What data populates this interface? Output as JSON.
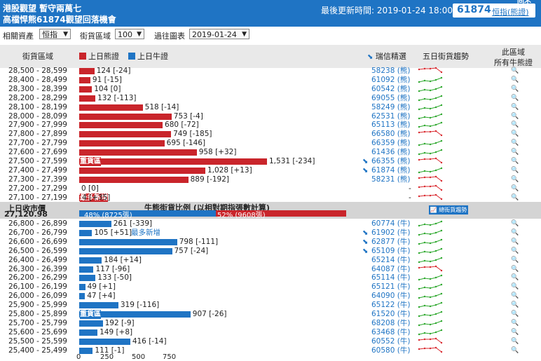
{
  "header": {
    "title_line1": "港股觀望 暫守兩萬七",
    "title_line2": "高檔悍熊61874觀望回落機會",
    "update_label": "最後更新時間: 2019-01-24 18:00",
    "stock_code": "61874",
    "stock_link": "恒指(熊證)",
    "corner_text": "回不"
  },
  "filters": {
    "asset_label": "相關資產",
    "asset_value": "恒指",
    "street_label": "街貨區域",
    "street_value": "100",
    "chart_label": "過往圖表",
    "chart_value": "2019-01-24"
  },
  "columns": {
    "range": "街貨區域",
    "bear_legend": "上日熊證",
    "bull_legend": "上日牛證",
    "picks": "瑞信精選",
    "trend": "五日街貨趨勢",
    "all_line1": "此區域",
    "all_line2": "所有牛熊證"
  },
  "colors": {
    "bear": "#c9252b",
    "bull": "#1f74c4",
    "up": "#2da82d",
    "down": "#d9282e"
  },
  "bear_rows": [
    {
      "range": "28,500 - 28,599",
      "value": 124,
      "label": "124 [-24]",
      "link": "58238 (熊)",
      "trend": "down"
    },
    {
      "range": "28,400 - 28,499",
      "value": 91,
      "label": "91 [-15]",
      "link": "61092 (熊)",
      "trend": "up"
    },
    {
      "range": "28,300 - 28,399",
      "value": 104,
      "label": "104 [0]",
      "link": "60542 (熊)",
      "trend": "up"
    },
    {
      "range": "28,200 - 28,299",
      "value": 132,
      "label": "132 [-113]",
      "link": "69055 (熊)",
      "trend": "up"
    },
    {
      "range": "28,100 - 28,199",
      "value": 518,
      "label": "518 [-14]",
      "link": "58249 (熊)",
      "trend": "up"
    },
    {
      "range": "28,000 - 28,099",
      "value": 753,
      "label": "753 [-4]",
      "link": "62531 (熊)",
      "trend": "up"
    },
    {
      "range": "27,900 - 27,999",
      "value": 680,
      "label": "680 [-72]",
      "link": "65113 (熊)",
      "trend": "up"
    },
    {
      "range": "27,800 - 27,899",
      "value": 749,
      "label": "749 [-185]",
      "link": "66580 (熊)",
      "trend": "down"
    },
    {
      "range": "27,700 - 27,799",
      "value": 695,
      "label": "695 [-146]",
      "link": "66359 (熊)",
      "trend": "up"
    },
    {
      "range": "27,600 - 27,699",
      "value": 958,
      "label": "958 [+32]",
      "link": "61436 (熊)",
      "trend": "up"
    },
    {
      "range": "27,500 - 27,599",
      "value": 1531,
      "label": "1,531 [-234]",
      "link": "66355 (熊)",
      "trend": "down",
      "flag": true,
      "inner": "重貨區"
    },
    {
      "range": "27,400 - 27,499",
      "value": 1028,
      "label": "1,028 [+13]",
      "link": "61874 (熊)",
      "trend": "up",
      "flag": true
    },
    {
      "range": "27,300 - 27,399",
      "value": 889,
      "label": "889 [-192]",
      "link": "58231 (熊)",
      "trend": "down"
    },
    {
      "range": "27,200 - 27,299",
      "value": 0,
      "label": "0 [0]",
      "link": "-",
      "trend": "down"
    },
    {
      "range": "27,100 - 27,199",
      "value": 4,
      "label": "4 [+35]",
      "link": "-",
      "trend": "down",
      "inner": "最多新增"
    }
  ],
  "middle": {
    "prev_close_label": "上日收市價",
    "prev_close_value": "27,120.98",
    "ratio_title": "牛熊街貨比例 (以相對期指張數計算)",
    "bull_ratio": "48% (8725張)",
    "bear_ratio": "52% (9608張)",
    "bull_share": 0.48,
    "trend_button": "總街貨趨勢"
  },
  "bull_rows": [
    {
      "range": "26,800 - 26,899",
      "value": 261,
      "label": "261 [-339]",
      "link": "60774 (牛)",
      "trend": "up"
    },
    {
      "range": "26,700 - 26,799",
      "value": 105,
      "label": "105 [+51]",
      "link": "61902 (牛)",
      "trend": "up",
      "flag": true,
      "note": "最多新增"
    },
    {
      "range": "26,600 - 26,699",
      "value": 798,
      "label": "798 [-111]",
      "link": "62877 (牛)",
      "trend": "up",
      "flag": true
    },
    {
      "range": "26,500 - 26,599",
      "value": 757,
      "label": "757 [-24]",
      "link": "65109 (牛)",
      "trend": "up",
      "flag": true
    },
    {
      "range": "26,400 - 26,499",
      "value": 184,
      "label": "184 [+14]",
      "link": "65214 (牛)",
      "trend": "up"
    },
    {
      "range": "26,300 - 26,399",
      "value": 117,
      "label": "117 [-96]",
      "link": "64087 (牛)",
      "trend": "down"
    },
    {
      "range": "26,200 - 26,299",
      "value": 133,
      "label": "133 [-50]",
      "link": "65114 (牛)",
      "trend": "up"
    },
    {
      "range": "26,100 - 26,199",
      "value": 49,
      "label": "49 [+1]",
      "link": "65121 (牛)",
      "trend": "up"
    },
    {
      "range": "26,000 - 26,099",
      "value": 47,
      "label": "47 [+4]",
      "link": "64090 (牛)",
      "trend": "up"
    },
    {
      "range": "25,900 - 25,999",
      "value": 319,
      "label": "319 [-116]",
      "link": "65122 (牛)",
      "trend": "up"
    },
    {
      "range": "25,800 - 25,899",
      "value": 907,
      "label": "907 [-26]",
      "link": "61520 (牛)",
      "trend": "up",
      "inner": "重貨區"
    },
    {
      "range": "25,700 - 25,799",
      "value": 192,
      "label": "192 [-9]",
      "link": "68208 (牛)",
      "trend": "up"
    },
    {
      "range": "25,600 - 25,699",
      "value": 149,
      "label": "149 [+8]",
      "link": "63468 (牛)",
      "trend": "up"
    },
    {
      "range": "25,500 - 25,599",
      "value": 416,
      "label": "416 [-14]",
      "link": "60552 (牛)",
      "trend": "down"
    },
    {
      "range": "25,400 - 25,499",
      "value": 111,
      "label": "111 [-1]",
      "link": "60580 (牛)",
      "trend": "down"
    }
  ],
  "axis_ticks": [
    "0",
    "250",
    "500",
    "750"
  ]
}
